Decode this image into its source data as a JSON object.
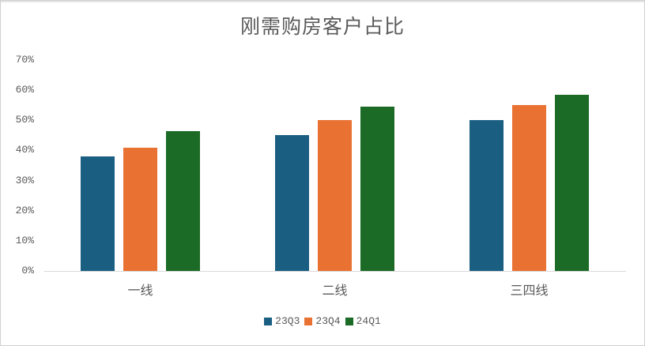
{
  "chart_data": {
    "type": "bar",
    "title": "刚需购房客户占比",
    "xlabel": "",
    "ylabel": "",
    "categories": [
      "一线",
      "二线",
      "三四线"
    ],
    "series": [
      {
        "name": "23Q3",
        "color": "#1a5e82",
        "values": [
          38,
          45,
          50
        ]
      },
      {
        "name": "23Q4",
        "color": "#e97132",
        "values": [
          41,
          50,
          55
        ]
      },
      {
        "name": "24Q1",
        "color": "#1b6b26",
        "values": [
          46.5,
          54.5,
          58.5
        ]
      }
    ],
    "ylim": [
      0,
      70
    ],
    "yticks": [
      "0%",
      "10%",
      "20%",
      "30%",
      "40%",
      "50%",
      "60%",
      "70%"
    ],
    "grid": false,
    "legend_position": "bottom"
  }
}
